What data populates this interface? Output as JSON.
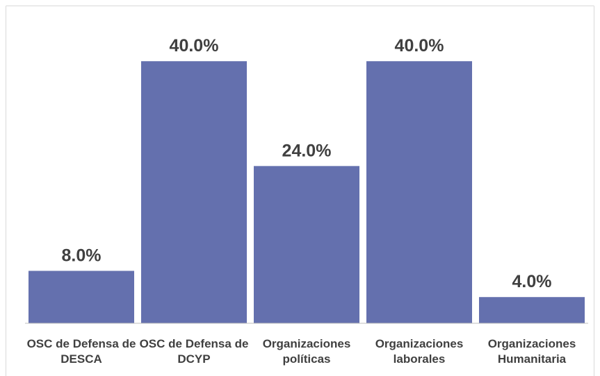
{
  "chart_data": {
    "type": "bar",
    "categories": [
      "OSC de Defensa de DESCA",
      "OSC de Defensa de DCYP",
      "Organizaciones políticas",
      "Organizaciones laborales",
      "Organizaciones Humanitaria"
    ],
    "values": [
      8,
      40,
      24,
      40,
      4
    ],
    "value_labels": [
      "8.0%",
      "40.0%",
      "24.0%",
      "40.0%",
      "4.0%"
    ],
    "color": "#6470ae",
    "ylim": [
      0,
      45
    ]
  }
}
